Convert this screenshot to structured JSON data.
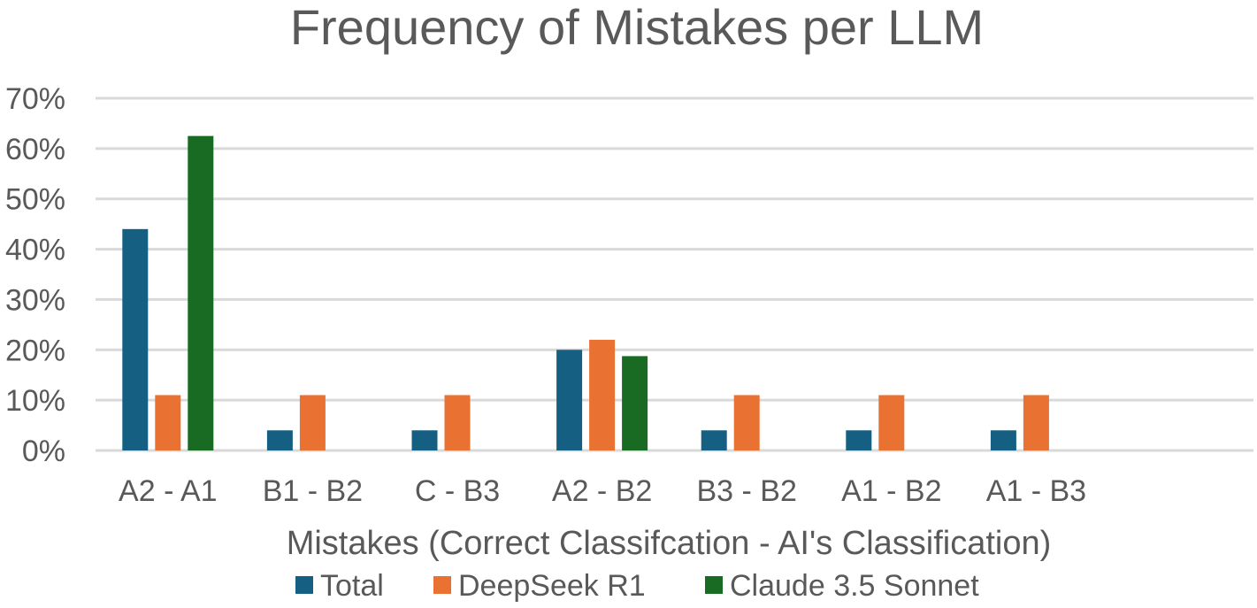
{
  "chart_data": {
    "type": "bar",
    "title": "Frequency of Mistakes per LLM",
    "xlabel": "Mistakes (Correct Classifcation - AI's Classification)",
    "ylabel": "",
    "categories": [
      "A2 - A1",
      "B1 - B2",
      "C - B3",
      "A2 - B2",
      "B3 - B2",
      "A1 - B2",
      "A1 - B3"
    ],
    "series": [
      {
        "name": "Total",
        "color": "#156082",
        "values": [
          44,
          4,
          4,
          20,
          4,
          4,
          4
        ]
      },
      {
        "name": "DeepSeek R1",
        "color": "#E97132",
        "values": [
          11,
          11,
          11,
          22,
          11,
          11,
          11
        ]
      },
      {
        "name": "Claude 3.5 Sonnet",
        "color": "#196B24",
        "values": [
          62.5,
          0,
          0,
          18.75,
          0,
          0,
          0
        ]
      }
    ],
    "ylim": [
      0,
      70
    ],
    "yticks": [
      0,
      10,
      20,
      30,
      40,
      50,
      60,
      70
    ],
    "ytick_labels": [
      "0%",
      "10%",
      "20%",
      "30%",
      "40%",
      "50%",
      "60%",
      "70%"
    ],
    "grid": true,
    "legend": "bottom"
  }
}
